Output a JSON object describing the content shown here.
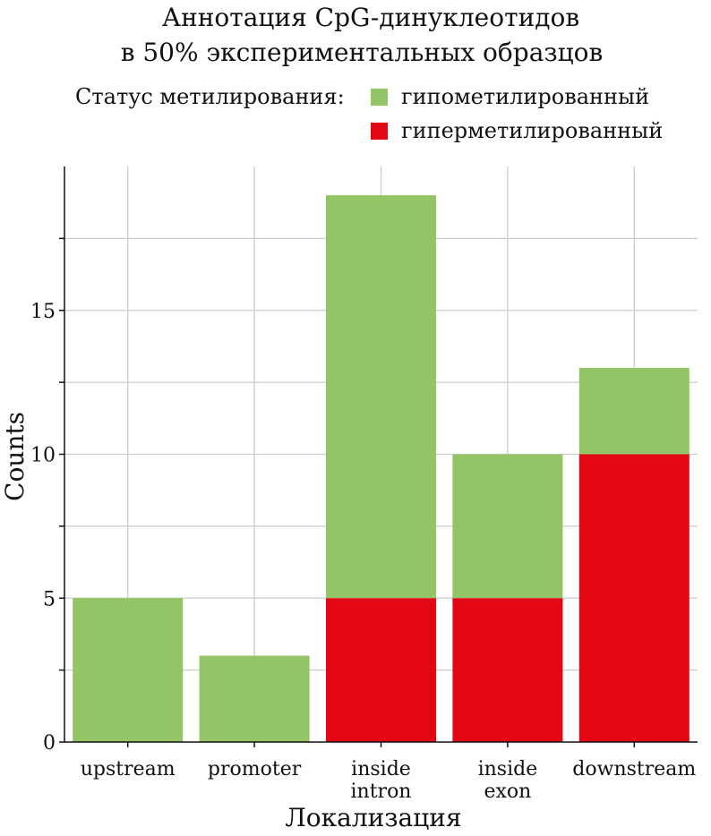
{
  "chart_data": {
    "type": "bar",
    "stacked": true,
    "title": [
      "Аннотация CpG-динуклеотидов",
      "в 50% экспериментальных образцов"
    ],
    "xlabel": "Локализация",
    "ylabel": "Counts",
    "categories": [
      [
        "upstream"
      ],
      [
        "promoter"
      ],
      [
        "inside",
        "intron"
      ],
      [
        "inside",
        "exon"
      ],
      [
        "downstream"
      ]
    ],
    "series": [
      {
        "name": "гиперметилированный",
        "color": "#e30613",
        "values": [
          0,
          0,
          5,
          5,
          10
        ]
      },
      {
        "name": "гипометилированный",
        "color": "#93c465",
        "values": [
          5,
          3,
          14,
          5,
          3
        ]
      }
    ],
    "ylim": [
      0,
      20
    ],
    "yticks": [
      0,
      5,
      10,
      15
    ],
    "grid": true,
    "legend": {
      "title": "Статус метилирования:",
      "placement": "top",
      "order": [
        "гипометилированный",
        "гиперметилированный"
      ]
    }
  }
}
